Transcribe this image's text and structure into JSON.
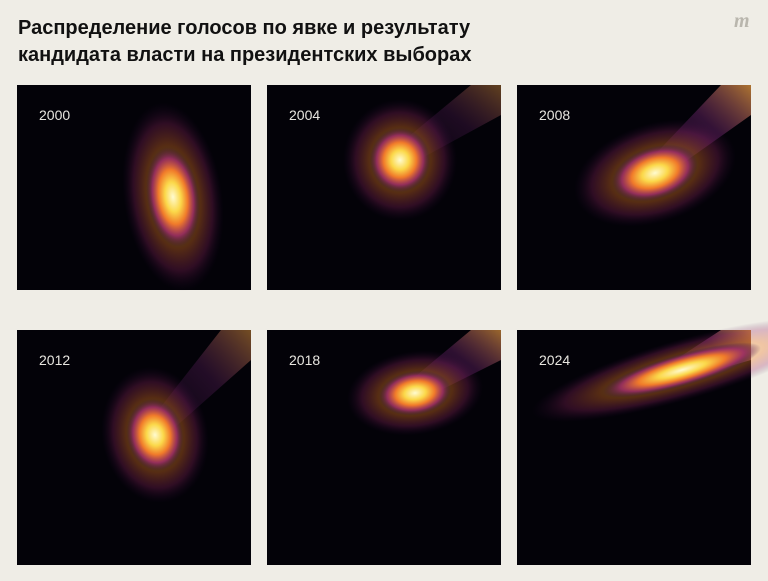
{
  "header": {
    "title_line1": "Распределение голосов по явке и результату",
    "title_line2": "кандидата власти на президентских выборах",
    "logo": "m"
  },
  "panels": [
    {
      "label": "2000"
    },
    {
      "label": "2004"
    },
    {
      "label": "2008"
    },
    {
      "label": "2012"
    },
    {
      "label": "2018"
    },
    {
      "label": "2024"
    }
  ]
}
